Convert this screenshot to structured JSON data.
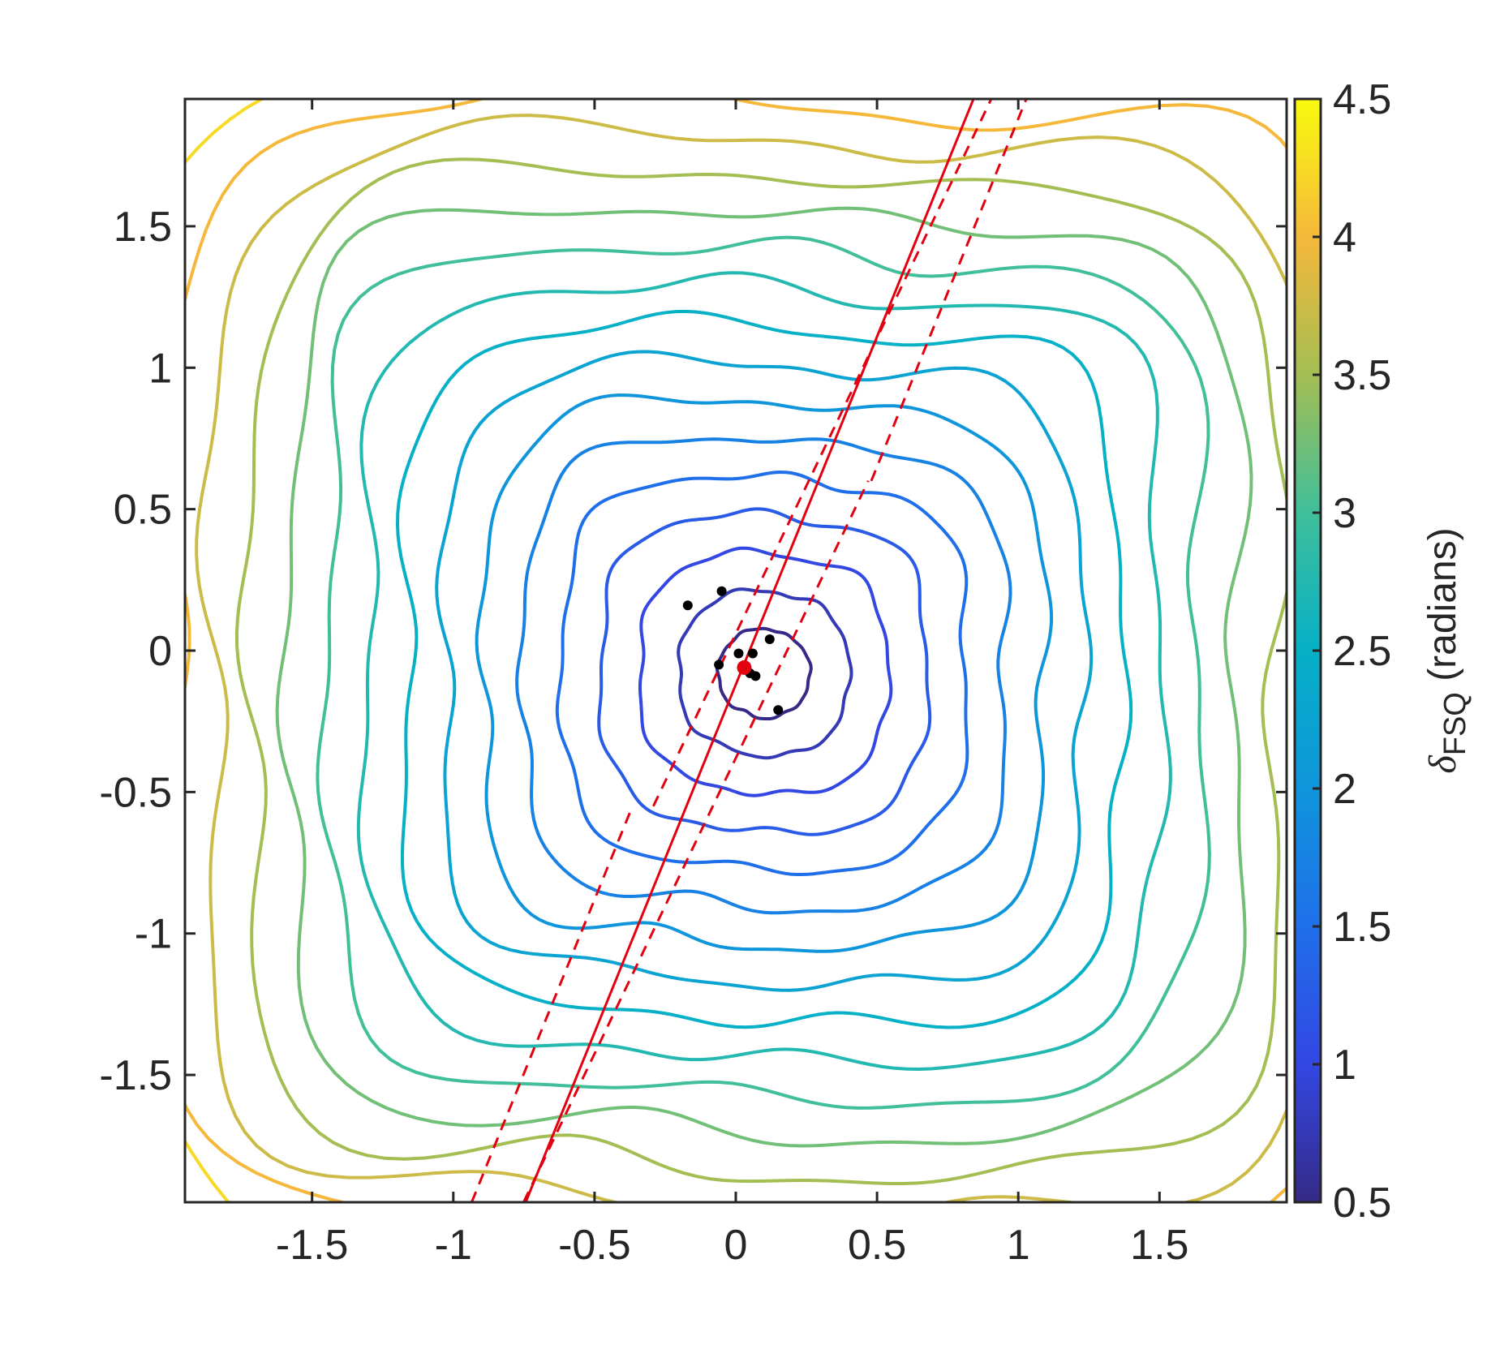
{
  "chart_data": {
    "type": "contour",
    "title": "",
    "xlabel": "",
    "ylabel": "",
    "xlim": [
      -1.95,
      1.95
    ],
    "ylim": [
      -1.95,
      1.95
    ],
    "x_ticks": [
      -1.5,
      -1,
      -0.5,
      0,
      0.5,
      1,
      1.5
    ],
    "x_tick_labels": [
      "-1.5",
      "-1",
      "-0.5",
      "0",
      "0.5",
      "1",
      "1.5"
    ],
    "y_ticks": [
      -1.5,
      -1,
      -0.5,
      0,
      0.5,
      1,
      1.5
    ],
    "y_tick_labels": [
      "-1.5",
      "-1",
      "-0.5",
      "0",
      "0.5",
      "1",
      "1.5"
    ],
    "grid": false,
    "colormap": "parula",
    "colorbar": {
      "label_main": "δ",
      "label_sub": "FSQ",
      "label_unit": " (radians)",
      "range": [
        0.5,
        4.5
      ],
      "ticks": [
        0.5,
        1,
        1.5,
        2,
        2.5,
        3,
        3.5,
        4,
        4.5
      ],
      "tick_labels": [
        "0.5",
        "1",
        "1.5",
        "2",
        "2.5",
        "3",
        "3.5",
        "4",
        "4.5"
      ]
    },
    "contour_center": [
      0.1,
      -0.08
    ],
    "contour_levels": [
      0.5,
      0.75,
      1.0,
      1.25,
      1.5,
      1.75,
      2.0,
      2.25,
      2.5,
      2.75,
      3.0,
      3.25,
      3.5,
      3.75,
      4.0,
      4.25,
      4.5
    ],
    "scatter_points": [
      {
        "x": -0.17,
        "y": 0.16
      },
      {
        "x": -0.05,
        "y": 0.21
      },
      {
        "x": -0.06,
        "y": -0.05
      },
      {
        "x": 0.01,
        "y": -0.01
      },
      {
        "x": 0.05,
        "y": -0.08
      },
      {
        "x": 0.07,
        "y": -0.09
      },
      {
        "x": 0.06,
        "y": -0.01
      },
      {
        "x": 0.12,
        "y": 0.04
      },
      {
        "x": 0.15,
        "y": -0.21
      }
    ],
    "mean_point": {
      "x": 0.03,
      "y": -0.06
    },
    "fit_line": {
      "slope": 2.46,
      "intercept": -0.12
    },
    "confidence_band": [
      {
        "slope": 2.46,
        "intercept": 0.35,
        "y_range": [
          -1.95,
          -0.55
        ]
      },
      {
        "slope": 2.09,
        "intercept": 0.06,
        "y_range": [
          -0.55,
          1.95
        ]
      },
      {
        "slope": 2.46,
        "intercept": -0.58,
        "y_range": [
          0.6,
          1.95
        ]
      },
      {
        "slope": 2.09,
        "intercept": -0.38,
        "y_range": [
          -1.95,
          0.6
        ]
      }
    ],
    "colors": {
      "fit_line": "#e3000f",
      "points": "#000000",
      "mean_point": "#e3000f",
      "axes": "#262626"
    }
  }
}
